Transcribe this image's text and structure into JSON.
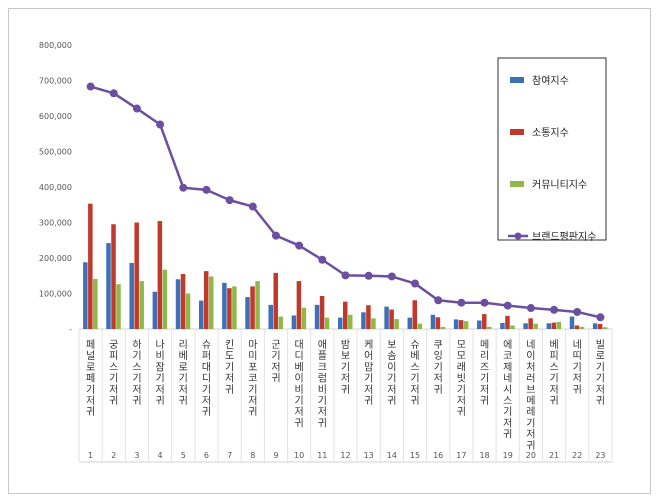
{
  "chart_data": {
    "type": "bar",
    "title": "",
    "xlabel": "",
    "ylabel": "",
    "ylim": [
      0,
      800000
    ],
    "yticks": [
      0,
      100000,
      200000,
      300000,
      400000,
      500000,
      600000,
      700000,
      800000
    ],
    "ytick_labels": [
      "-",
      "100,000",
      "200,000",
      "300,000",
      "400,000",
      "500,000",
      "600,000",
      "700,000",
      "800,000"
    ],
    "grid": false,
    "legend_position": "top-right",
    "categories": [
      "페널로페 기저귀",
      "궁피스 기저귀",
      "하기스 기저귀",
      "나비잠 기저귀",
      "리베로 기저귀",
      "슈퍼대디 기저귀",
      "킨도 기저귀",
      "마미포코 기저귀",
      "군 기저귀",
      "대디베이비 기저귀",
      "애플크럼비 기저귀",
      "밤보 기저귀",
      "케어맘 기저귀",
      "보솜이 기저귀",
      "슈베스 기저귀",
      "쿠잉 기저귀",
      "모모래빗 기저귀",
      "메리즈 기저귀",
      "에코제네시스 기저귀",
      "네이처러브메레 기저귀",
      "베피스 기저귀",
      "네띠 기저귀",
      "빌로기 기저귀"
    ],
    "index_labels": [
      "1",
      "2",
      "3",
      "4",
      "5",
      "6",
      "7",
      "8",
      "9",
      "10",
      "11",
      "12",
      "13",
      "14",
      "15",
      "16",
      "17",
      "18",
      "19",
      "20",
      "21",
      "22",
      "23"
    ],
    "series": [
      {
        "name": "참여지수",
        "kind": "bar",
        "color": "#3f6fb5",
        "values": [
          188000,
          242000,
          186000,
          105000,
          140000,
          80000,
          130000,
          90000,
          68000,
          38000,
          68000,
          32000,
          47000,
          63000,
          32000,
          40000,
          27000,
          24000,
          17000,
          16000,
          16000,
          35000,
          16000
        ]
      },
      {
        "name": "소통지수",
        "kind": "bar",
        "color": "#c0392b",
        "values": [
          353000,
          295000,
          300000,
          304000,
          155000,
          163000,
          115000,
          120000,
          158000,
          135000,
          93000,
          77000,
          67000,
          55000,
          81000,
          33000,
          25000,
          42000,
          37000,
          30000,
          18000,
          10000,
          14000
        ]
      },
      {
        "name": "커뮤니티지수",
        "kind": "bar",
        "color": "#8fb84a",
        "values": [
          141000,
          126000,
          135000,
          167000,
          100000,
          148000,
          120000,
          135000,
          35000,
          60000,
          32000,
          40000,
          30000,
          28000,
          15000,
          6000,
          22000,
          6000,
          10000,
          15000,
          20000,
          6000,
          5000
        ]
      },
      {
        "name": "브랜드평판지수",
        "kind": "line",
        "color": "#6b4fa0",
        "values": [
          683000,
          664000,
          621000,
          576000,
          398000,
          392000,
          363000,
          345000,
          263000,
          235000,
          195000,
          151000,
          150000,
          148000,
          128000,
          81000,
          74000,
          74000,
          66000,
          59000,
          54000,
          48000,
          33000
        ]
      }
    ]
  }
}
